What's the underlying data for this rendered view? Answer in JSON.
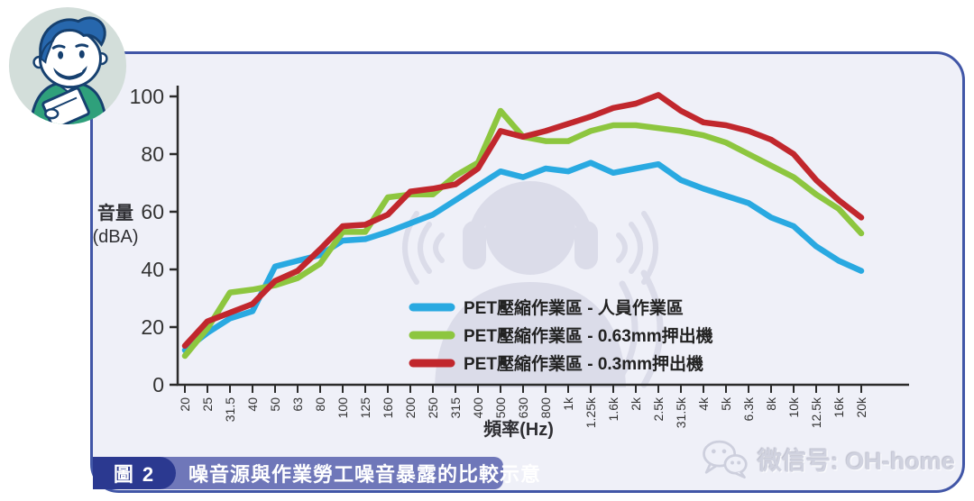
{
  "colors": {
    "blue_series": "#29A9E1",
    "green_series": "#8DC63F",
    "red_series": "#C1272D",
    "panel_border": "#4156A7",
    "panel_bg": "#EFF0F8",
    "caption_bar": "#6F77B9",
    "caption_badge": "#2B3990",
    "axis": "#2B2B2B",
    "watermark_figure": "#DBDCE9",
    "avatar_bg": "#D3DEDA"
  },
  "y_axis_label": {
    "line1": "音量",
    "line2": "(dBA)"
  },
  "chart_data": {
    "type": "line",
    "title": "",
    "xlabel": "頻率(Hz)",
    "ylabel": "音量 (dBA)",
    "ylim": [
      0,
      100
    ],
    "yticks": [
      0,
      20,
      40,
      60,
      80,
      100
    ],
    "grid": false,
    "legend_position": "inside-lower-center",
    "categories": [
      "20",
      "25",
      "31.5",
      "40",
      "50",
      "63",
      "80",
      "100",
      "125",
      "160",
      "200",
      "250",
      "315",
      "400",
      "500",
      "630",
      "800",
      "1k",
      "1.25k",
      "1.6k",
      "2k",
      "2.5k",
      "31.5k",
      "4k",
      "5k",
      "6.3k",
      "8k",
      "10k",
      "12.5k",
      "16k",
      "20k"
    ],
    "series": [
      {
        "name": "PET壓縮作業區 - 人員作業區",
        "color": "#29A9E1",
        "values": [
          12,
          18,
          23,
          25.5,
          41,
          43,
          45,
          50,
          50.5,
          53,
          56,
          59,
          64,
          69,
          74,
          72,
          75,
          74,
          77,
          73.5,
          75,
          76.5,
          71,
          68,
          65.5,
          63,
          58,
          55,
          48,
          43,
          39.5
        ]
      },
      {
        "name": "PET壓縮作業區 - 0.63mm押出機",
        "color": "#8DC63F",
        "values": [
          10,
          19.5,
          32,
          33,
          34.5,
          37,
          42,
          53,
          53,
          65,
          66,
          66,
          72.5,
          77,
          95,
          86,
          84.5,
          84.5,
          88,
          90,
          90,
          89,
          88,
          86.5,
          84,
          80,
          76,
          72,
          66,
          61,
          52.5
        ]
      },
      {
        "name": "PET壓縮作業區 - 0.3mm押出機",
        "color": "#C1272D",
        "values": [
          13.5,
          22,
          25,
          28,
          36,
          39.5,
          47,
          55,
          55.5,
          59,
          67,
          68,
          69.5,
          75,
          88,
          86,
          88,
          90.5,
          93,
          96,
          97.5,
          100.5,
          95,
          91,
          90,
          88,
          85,
          80,
          71,
          64,
          58
        ]
      }
    ]
  },
  "caption": {
    "badge": "圖 2",
    "text": "噪音源與作業勞工噪音暴露的比較示意"
  },
  "watermark_credit": {
    "text": "微信号: OH-home"
  }
}
